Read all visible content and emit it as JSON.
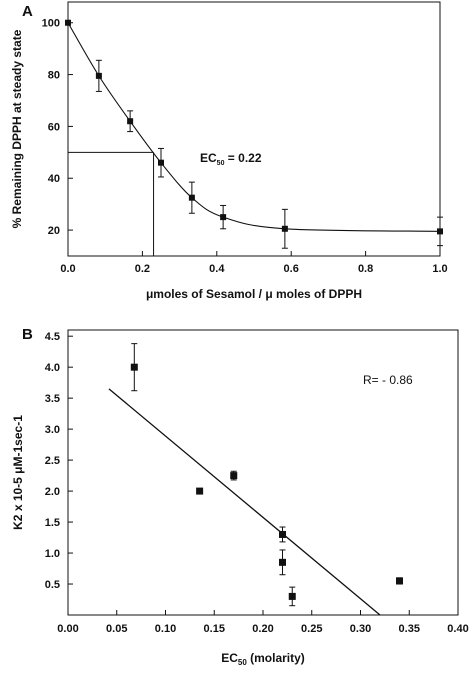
{
  "chart_data": [
    {
      "panel": "A",
      "type": "line",
      "xlabel": "μmoles of Sesamol / μ moles of DPPH",
      "ylabel": "% Remaining DPPH at steady state",
      "xlim": [
        0,
        1.0
      ],
      "ylim": [
        10,
        108
      ],
      "xticks": [
        "0.0",
        "0.2",
        "0.4",
        "0.6",
        "0.8",
        "1.0"
      ],
      "yticks": [
        "20",
        "40",
        "60",
        "80",
        "100"
      ],
      "x": [
        0.0,
        0.083,
        0.167,
        0.25,
        0.333,
        0.417,
        0.583,
        1.0
      ],
      "y": [
        100,
        79.5,
        62,
        46,
        32.5,
        25,
        20.5,
        19.5
      ],
      "err": [
        0,
        6,
        4,
        5.5,
        6,
        4.5,
        7.5,
        5.5
      ],
      "ec50_line": {
        "x": 0.23,
        "y": 50
      },
      "annotation": {
        "main": "EC",
        "sub": "50",
        "tail": " = 0.22"
      },
      "grid": false,
      "legend": "none"
    },
    {
      "panel": "B",
      "type": "scatter",
      "xlabel_main": "EC",
      "xlabel_sub": "50",
      "xlabel_tail": " (molarity)",
      "ylabel": "K2 x 10-5 μM-1sec-1",
      "xlim": [
        0.0,
        0.4
      ],
      "ylim": [
        0.0,
        4.6
      ],
      "xticks": [
        "0.00",
        "0.05",
        "0.10",
        "0.15",
        "0.20",
        "0.25",
        "0.30",
        "0.35",
        "0.40"
      ],
      "yticks": [
        "0.5",
        "1.0",
        "1.5",
        "2.0",
        "2.5",
        "3.0",
        "3.5",
        "4.0",
        "4.5"
      ],
      "x": [
        0.068,
        0.135,
        0.17,
        0.22,
        0.22,
        0.23,
        0.34
      ],
      "y": [
        4.0,
        2.0,
        2.25,
        1.3,
        0.85,
        0.3,
        0.55
      ],
      "err": [
        0.38,
        0,
        0.07,
        0.12,
        0.2,
        0.15,
        0.05
      ],
      "fit": {
        "x": [
          0.042,
          0.32
        ],
        "y": [
          3.65,
          0.0
        ]
      },
      "annotation": "R= - 0.86",
      "grid": false,
      "legend": "none"
    }
  ]
}
